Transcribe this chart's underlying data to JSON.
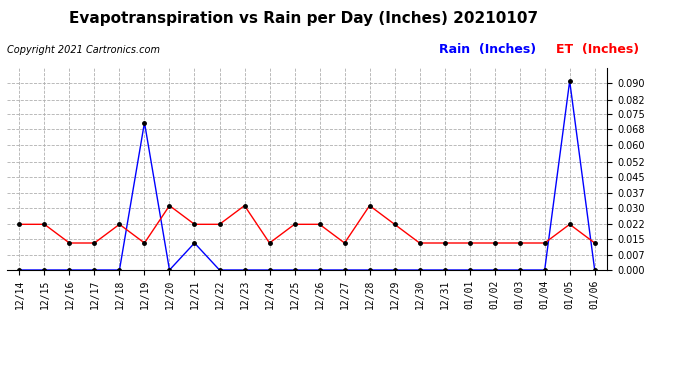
{
  "title": "Evapotranspiration vs Rain per Day (Inches) 20210107",
  "copyright": "Copyright 2021 Cartronics.com",
  "legend_rain": "Rain  (Inches)",
  "legend_et": "ET  (Inches)",
  "x_labels": [
    "12/14",
    "12/15",
    "12/16",
    "12/17",
    "12/18",
    "12/19",
    "12/20",
    "12/21",
    "12/22",
    "12/23",
    "12/24",
    "12/25",
    "12/26",
    "12/27",
    "12/28",
    "12/29",
    "12/30",
    "12/31",
    "01/01",
    "01/02",
    "01/03",
    "01/04",
    "01/05",
    "01/06"
  ],
  "rain_values": [
    0.0,
    0.0,
    0.0,
    0.0,
    0.0,
    0.071,
    0.0,
    0.013,
    0.0,
    0.0,
    0.0,
    0.0,
    0.0,
    0.0,
    0.0,
    0.0,
    0.0,
    0.0,
    0.0,
    0.0,
    0.0,
    0.0,
    0.091,
    0.0
  ],
  "et_values": [
    0.022,
    0.022,
    0.013,
    0.013,
    0.022,
    0.013,
    0.031,
    0.022,
    0.022,
    0.031,
    0.013,
    0.022,
    0.022,
    0.013,
    0.031,
    0.022,
    0.013,
    0.013,
    0.013,
    0.013,
    0.013,
    0.013,
    0.022,
    0.013
  ],
  "rain_color": "#0000ff",
  "et_color": "#ff0000",
  "bg_color": "#ffffff",
  "grid_color": "#b0b0b0",
  "ylim": [
    0.0,
    0.0975
  ],
  "yticks": [
    0.0,
    0.007,
    0.015,
    0.022,
    0.03,
    0.037,
    0.045,
    0.052,
    0.06,
    0.068,
    0.075,
    0.082,
    0.09
  ],
  "title_fontsize": 11,
  "copyright_fontsize": 7,
  "legend_fontsize": 9,
  "tick_fontsize": 7
}
